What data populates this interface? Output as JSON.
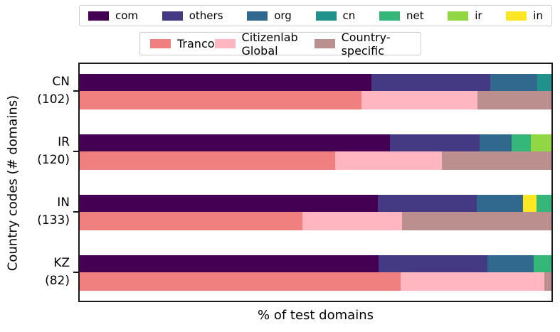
{
  "chart_data": {
    "type": "bar",
    "orientation": "horizontal",
    "stacked": true,
    "title": "",
    "xlabel": "% of test domains",
    "ylabel": "Country codes (# domains)",
    "xlim": [
      0,
      100
    ],
    "grid": false,
    "tld_colors": {
      "com": "#440154",
      "others": "#443983",
      "org": "#31688e",
      "cn": "#21918c",
      "net": "#35b779",
      "ir": "#90d743",
      "in": "#fde725"
    },
    "source_colors": {
      "Tranco": "#f08080",
      "Citizenlab Global": "#ffb6c1",
      "Country-specific": "#bc8f8f"
    },
    "legend_tld": {
      "position": "top",
      "items": [
        "com",
        "others",
        "org",
        "cn",
        "net",
        "ir",
        "in"
      ]
    },
    "legend_source": {
      "position": "top",
      "items": [
        "Tranco",
        "Citizenlab Global",
        "Country-specific"
      ]
    },
    "groups": [
      {
        "code": "CN",
        "num_domains": 102,
        "label_line1": "CN",
        "label_line2": "(102)",
        "tld_segments": [
          {
            "name": "com",
            "pct": 61.8
          },
          {
            "name": "others",
            "pct": 25.3
          },
          {
            "name": "org",
            "pct": 9.9
          },
          {
            "name": "cn",
            "pct": 3.0
          }
        ],
        "source_segments": [
          {
            "name": "Tranco",
            "pct": 59.8
          },
          {
            "name": "Citizenlab Global",
            "pct": 24.5
          },
          {
            "name": "Country-specific",
            "pct": 15.7
          }
        ]
      },
      {
        "code": "IR",
        "num_domains": 120,
        "label_line1": "IR",
        "label_line2": "(120)",
        "tld_segments": [
          {
            "name": "com",
            "pct": 65.7
          },
          {
            "name": "others",
            "pct": 19.1
          },
          {
            "name": "org",
            "pct": 6.7
          },
          {
            "name": "net",
            "pct": 4.2
          },
          {
            "name": "ir",
            "pct": 4.3
          }
        ],
        "source_segments": [
          {
            "name": "Tranco",
            "pct": 54.2
          },
          {
            "name": "Citizenlab Global",
            "pct": 22.5
          },
          {
            "name": "Country-specific",
            "pct": 23.3
          }
        ]
      },
      {
        "code": "IN",
        "num_domains": 133,
        "label_line1": "IN",
        "label_line2": "(133)",
        "tld_segments": [
          {
            "name": "com",
            "pct": 63.2
          },
          {
            "name": "others",
            "pct": 20.9
          },
          {
            "name": "org",
            "pct": 9.8
          },
          {
            "name": "in",
            "pct": 2.9
          },
          {
            "name": "net",
            "pct": 3.2
          }
        ],
        "source_segments": [
          {
            "name": "Tranco",
            "pct": 47.2
          },
          {
            "name": "Citizenlab Global",
            "pct": 21.2
          },
          {
            "name": "Country-specific",
            "pct": 31.6
          }
        ]
      },
      {
        "code": "KZ",
        "num_domains": 82,
        "label_line1": "KZ",
        "label_line2": "(82)",
        "tld_segments": [
          {
            "name": "com",
            "pct": 63.4
          },
          {
            "name": "others",
            "pct": 23.1
          },
          {
            "name": "org",
            "pct": 9.7
          },
          {
            "name": "net",
            "pct": 3.8
          }
        ],
        "source_segments": [
          {
            "name": "Tranco",
            "pct": 68.0
          },
          {
            "name": "Citizenlab Global",
            "pct": 30.5
          },
          {
            "name": "Country-specific",
            "pct": 1.5
          }
        ]
      }
    ]
  }
}
